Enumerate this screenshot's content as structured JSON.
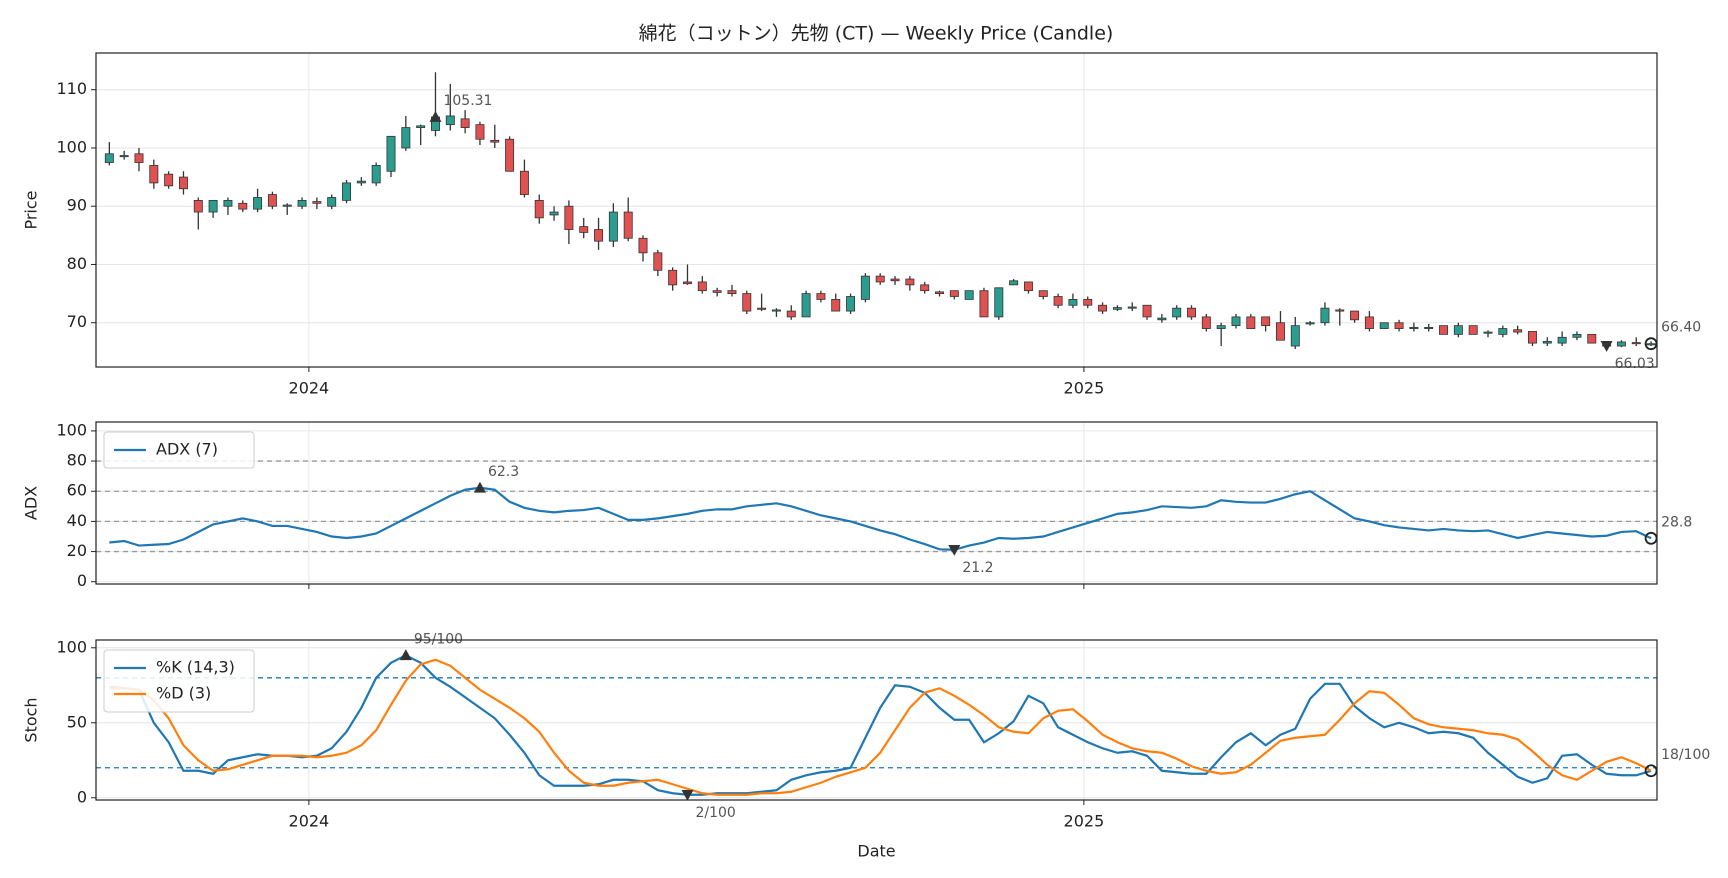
{
  "chart_data": [
    {
      "type": "candlestick",
      "title": "綿花（コットン）先物 (CT) — Weekly Price (Candle)",
      "ylabel": "Price",
      "up_color": "#2a9d8f",
      "down_color": "#e05252",
      "x": [
        0,
        1,
        2,
        3,
        4,
        5,
        6,
        7,
        8,
        9,
        10,
        11,
        12,
        13,
        14,
        15,
        16,
        17,
        18,
        19,
        20,
        21,
        22,
        23,
        24,
        25,
        26,
        27,
        28,
        29,
        30,
        31,
        32,
        33,
        34,
        35,
        36,
        37,
        38,
        39,
        40,
        41,
        42,
        43,
        44,
        45,
        46,
        47,
        48,
        49,
        50,
        51,
        52,
        53,
        54,
        55,
        56,
        57,
        58,
        59,
        60,
        61,
        62,
        63,
        64,
        65,
        66,
        67,
        68,
        69,
        70,
        71,
        72,
        73,
        74,
        75,
        76,
        77,
        78,
        79,
        80,
        81,
        82,
        83,
        84,
        85,
        86,
        87,
        88,
        89,
        90,
        91,
        92,
        93,
        94,
        95,
        96,
        97,
        98,
        99,
        100,
        101,
        102,
        103,
        104
      ],
      "open": [
        97.5,
        98.5,
        99,
        97,
        95.5,
        95,
        91,
        89,
        90,
        90.5,
        89.5,
        92,
        90,
        90,
        90.8,
        90,
        91,
        94,
        94,
        96,
        100,
        103.5,
        103,
        104,
        105,
        104,
        101.3,
        101.5,
        96,
        91,
        88.5,
        90,
        86.5,
        86,
        84,
        89,
        84.5,
        82,
        79,
        77,
        77,
        75.5,
        75.5,
        75,
        72.5,
        72,
        72,
        71,
        75,
        74,
        72,
        74,
        78,
        77.5,
        77.5,
        76.5,
        75.3,
        75.5,
        74,
        75.5,
        71,
        76.5,
        77,
        75.5,
        74.5,
        73,
        74,
        73,
        72.3,
        72.5,
        73,
        70.5,
        71,
        72.5,
        71,
        69,
        69.5,
        71,
        71,
        70,
        66,
        69.8,
        70,
        72.2,
        72,
        71,
        69,
        70,
        69,
        69,
        69.5,
        68,
        69.5,
        68.2,
        68,
        68.8,
        68.5,
        66.5,
        66.5,
        67.5,
        68,
        66.2,
        66,
        66.6,
        66.3
      ],
      "high": [
        101,
        99.5,
        100,
        98,
        96,
        96,
        91.5,
        91,
        91.5,
        91,
        93,
        92.5,
        90.5,
        91.5,
        91.5,
        92,
        94.5,
        95,
        97.5,
        102,
        105.5,
        104,
        113,
        111,
        106.5,
        104.5,
        104,
        102,
        98,
        92,
        90,
        91,
        88,
        88,
        90.5,
        91.5,
        85,
        82.5,
        79.5,
        80,
        78,
        76,
        76.5,
        75.5,
        75,
        72.5,
        73,
        75.5,
        75.5,
        75,
        75,
        78.5,
        78.5,
        78,
        78,
        77,
        75.5,
        75.5,
        75.5,
        76,
        76,
        77.5,
        77,
        75.5,
        75,
        75,
        74.5,
        73.5,
        73,
        73.5,
        73,
        71.5,
        73,
        73,
        71.5,
        70,
        71.5,
        71.5,
        71,
        72,
        71,
        70.3,
        73.5,
        72.5,
        72,
        72,
        70,
        70.5,
        70,
        69.8,
        69.5,
        70,
        69.5,
        68.7,
        69.5,
        69.5,
        68.5,
        67.5,
        68.5,
        68.5,
        68,
        66.5,
        67,
        67.5,
        66.8
      ],
      "low": [
        97,
        98,
        96,
        93,
        93,
        92,
        86,
        88,
        88.5,
        89,
        89,
        89.5,
        88.5,
        89.5,
        89.5,
        89.5,
        90.5,
        93.5,
        93.5,
        95,
        99.5,
        100.5,
        102,
        103,
        102.5,
        100.5,
        100,
        96,
        91.5,
        87,
        87.5,
        83.5,
        84.5,
        82.5,
        83,
        84,
        80.5,
        78,
        75.5,
        76.5,
        75,
        74.5,
        74.5,
        71.5,
        72,
        71,
        70.5,
        71,
        73.5,
        72,
        71.5,
        73.5,
        76.5,
        76.5,
        75.5,
        75,
        74.5,
        74,
        74,
        71,
        70.5,
        76.5,
        75,
        74,
        72.5,
        72.5,
        72.5,
        71.5,
        72,
        72,
        70.5,
        70,
        70.5,
        70.5,
        68.5,
        66,
        69,
        69,
        68.5,
        67,
        65.5,
        69.5,
        69.5,
        69.5,
        70,
        68.5,
        69,
        68.5,
        68.5,
        68.5,
        68,
        67.5,
        68,
        67.5,
        67.5,
        68,
        66,
        66,
        66,
        67,
        66.5,
        65.8,
        65.8,
        66,
        66
      ],
      "close": [
        99,
        98.7,
        97.5,
        94,
        93.5,
        93,
        89,
        91,
        91,
        89.5,
        91.5,
        90,
        90.2,
        91,
        90.5,
        91.5,
        94,
        94.3,
        97,
        102,
        103.5,
        103.8,
        105.31,
        105.5,
        103.5,
        101.5,
        101,
        96,
        92,
        88,
        89,
        86,
        85.5,
        84,
        89,
        84.5,
        82,
        79,
        76.5,
        76.7,
        75.5,
        75.2,
        75,
        72,
        72.3,
        72.2,
        71,
        75,
        74,
        72,
        74.5,
        78,
        77,
        77.2,
        76.5,
        75.5,
        75,
        74.5,
        75.5,
        71,
        76,
        77.2,
        75.5,
        74.5,
        73,
        74,
        73,
        72,
        72.6,
        72.7,
        71,
        70.8,
        72.5,
        71,
        69,
        69.5,
        71,
        69,
        69.5,
        67,
        69.5,
        70,
        72.5,
        72,
        70.5,
        69,
        70,
        69,
        69.2,
        69.2,
        68,
        69.5,
        68,
        68.4,
        69,
        68.4,
        66.5,
        66.8,
        67.5,
        68,
        66.5,
        66.03,
        66.7,
        66.4,
        66.4
      ],
      "xlim": [
        -0.9,
        104.4
      ],
      "xticks": [
        {
          "value": 13.46,
          "label": "2024"
        },
        {
          "value": 65.74,
          "label": "2025"
        }
      ],
      "ylim": [
        62.4,
        116.3
      ],
      "yticks": [
        70,
        80,
        90,
        100,
        110
      ],
      "grid": true,
      "max": {
        "x": 22,
        "value": 105.31
      },
      "min": {
        "x": 101,
        "value": 66.03
      },
      "last": {
        "x": 104,
        "value": 66.4,
        "label": "66.40"
      }
    },
    {
      "type": "line",
      "ylabel": "ADX",
      "x": [
        0,
        1,
        2,
        3,
        4,
        5,
        6,
        7,
        8,
        9,
        10,
        11,
        12,
        13,
        14,
        15,
        16,
        17,
        18,
        19,
        20,
        21,
        22,
        23,
        24,
        25,
        26,
        27,
        28,
        29,
        30,
        31,
        32,
        33,
        34,
        35,
        36,
        37,
        38,
        39,
        40,
        41,
        42,
        43,
        44,
        45,
        46,
        47,
        48,
        49,
        50,
        51,
        52,
        53,
        54,
        55,
        56,
        57,
        58,
        59,
        60,
        61,
        62,
        63,
        64,
        65,
        66,
        67,
        68,
        69,
        70,
        71,
        72,
        73,
        74,
        75,
        76,
        77,
        78,
        79,
        80,
        81,
        82,
        83,
        84,
        85,
        86,
        87,
        88,
        89,
        90,
        91,
        92,
        93,
        94,
        95,
        96,
        97,
        98,
        99,
        100,
        101,
        102,
        103,
        104
      ],
      "series": [
        {
          "name": "ADX (7)",
          "color": "#1f77b4",
          "values": [
            26,
            27,
            24,
            24.5,
            25,
            28,
            33,
            38,
            40,
            42,
            40,
            37,
            37,
            35,
            33,
            30,
            29,
            30,
            32,
            37,
            42,
            47,
            52,
            57,
            61,
            62.3,
            61,
            53,
            49,
            47,
            46,
            47,
            47.5,
            49,
            45,
            41,
            41,
            42,
            43.5,
            45,
            47,
            48,
            48,
            50,
            51,
            52,
            50,
            47,
            44,
            42,
            40,
            37,
            34,
            31.5,
            28,
            25,
            21.5,
            21.2,
            24,
            26,
            29,
            28.5,
            29,
            30,
            33,
            36,
            39,
            42,
            45,
            46,
            47.5,
            50,
            49.5,
            49,
            50,
            54,
            53,
            52.5,
            52.5,
            55,
            58,
            60,
            54,
            48,
            42,
            40,
            37.5,
            36,
            35,
            34,
            35,
            34,
            33.5,
            34,
            31.5,
            29,
            31,
            33,
            32,
            31,
            30,
            30.5,
            33,
            33.5,
            28.8
          ]
        }
      ],
      "xlim": [
        -0.9,
        104.4
      ],
      "ylim": [
        -1.5,
        105.9
      ],
      "yticks": [
        0,
        20,
        40,
        60,
        80,
        100
      ],
      "grid": true,
      "hlines": [
        20,
        40,
        60,
        80
      ],
      "hline_color": "#999999",
      "legend": "upper left",
      "max": {
        "x": 25,
        "value": 62.3
      },
      "min": {
        "x": 57,
        "value": 21.2
      },
      "last": {
        "x": 104,
        "value": 28.8
      }
    },
    {
      "type": "line",
      "ylabel": "Stoch",
      "xlabel": "Date",
      "x": [
        0,
        1,
        2,
        3,
        4,
        5,
        6,
        7,
        8,
        9,
        10,
        11,
        12,
        13,
        14,
        15,
        16,
        17,
        18,
        19,
        20,
        21,
        22,
        23,
        24,
        25,
        26,
        27,
        28,
        29,
        30,
        31,
        32,
        33,
        34,
        35,
        36,
        37,
        38,
        39,
        40,
        41,
        42,
        43,
        44,
        45,
        46,
        47,
        48,
        49,
        50,
        51,
        52,
        53,
        54,
        55,
        56,
        57,
        58,
        59,
        60,
        61,
        62,
        63,
        64,
        65,
        66,
        67,
        68,
        69,
        70,
        71,
        72,
        73,
        74,
        75,
        76,
        77,
        78,
        79,
        80,
        81,
        82,
        83,
        84,
        85,
        86,
        87,
        88,
        89,
        90,
        91,
        92,
        93,
        94,
        95,
        96,
        97,
        98,
        99,
        100,
        101,
        102,
        103,
        104
      ],
      "series": [
        {
          "name": "%K (14,3)",
          "color": "#1f77b4",
          "values": [
            74,
            73,
            72,
            50,
            37,
            18,
            18,
            16,
            25,
            27,
            29,
            28,
            28,
            27,
            28,
            33,
            44,
            60,
            80,
            90,
            95,
            90,
            80,
            74,
            67,
            60,
            53,
            42,
            30,
            15,
            8,
            8,
            8,
            9,
            12,
            12,
            11,
            5,
            3,
            2,
            2,
            3,
            3,
            3,
            4,
            5,
            12,
            15,
            17,
            18,
            20,
            40,
            60,
            75,
            74,
            70,
            60,
            52,
            52,
            37,
            43,
            51,
            68,
            63,
            47,
            42,
            37,
            33,
            30,
            31,
            28,
            18,
            17,
            16,
            16,
            27,
            37,
            43,
            35,
            42,
            46,
            66,
            76,
            76,
            61,
            53,
            47,
            50,
            47,
            43,
            44,
            43,
            40,
            30,
            22,
            14,
            10,
            13,
            28,
            29,
            22,
            16,
            15,
            15,
            18
          ]
        },
        {
          "name": "%D (3)",
          "color": "#ff7f0e",
          "values": [
            73,
            73,
            72,
            65,
            53,
            35,
            25,
            18,
            19,
            22,
            25,
            28,
            28,
            28,
            27,
            28,
            30,
            35,
            45,
            62,
            78,
            89,
            92,
            88,
            80,
            72,
            66,
            60,
            53,
            44,
            30,
            18,
            10,
            8,
            8,
            10,
            11,
            12,
            9,
            6,
            3,
            2,
            2,
            2,
            3,
            3,
            4,
            7,
            10,
            14,
            17,
            20,
            30,
            45,
            60,
            70,
            73,
            68,
            62,
            55,
            47,
            44,
            43,
            53,
            58,
            59,
            51,
            42,
            37,
            33,
            31,
            30,
            26,
            21,
            18,
            16,
            17,
            22,
            30,
            38,
            40,
            41,
            42,
            52,
            63,
            71,
            70,
            62,
            53,
            49,
            47,
            46,
            45,
            43,
            42,
            39,
            31,
            22,
            15,
            12,
            18,
            24,
            27,
            23,
            18
          ]
        }
      ],
      "xlim": [
        -0.9,
        104.4
      ],
      "xticks": [
        {
          "value": 13.46,
          "label": "2024"
        },
        {
          "value": 65.74,
          "label": "2025"
        }
      ],
      "ylim": [
        -1.5,
        105.2
      ],
      "yticks": [
        0,
        50,
        100
      ],
      "grid": true,
      "hlines": [
        20,
        80
      ],
      "hline_color": "#1f77b4",
      "legend": "upper left",
      "max": {
        "x": 20,
        "value": 95,
        "label": "95/100"
      },
      "min": {
        "x": 39,
        "value": 2,
        "label": "2/100"
      },
      "last": {
        "x": 104,
        "value": 18,
        "label": "18/100"
      }
    }
  ]
}
